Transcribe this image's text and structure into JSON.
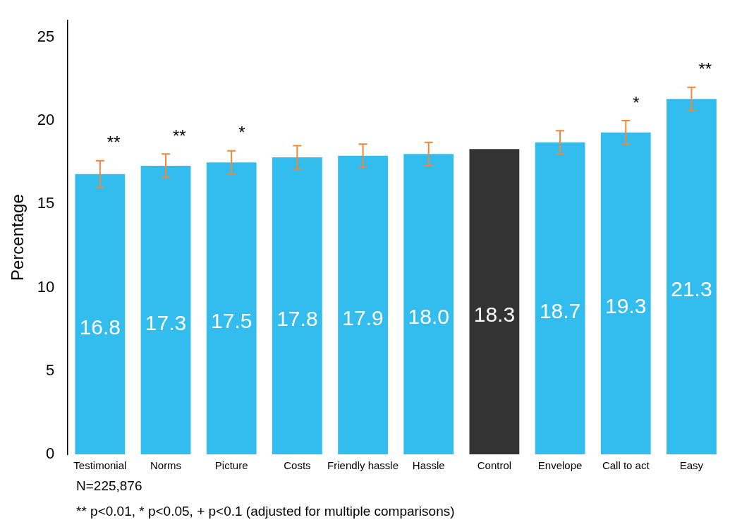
{
  "chart_data": {
    "type": "bar",
    "ylabel": "Percentage",
    "categories": [
      "Testimonial",
      "Norms",
      "Picture",
      "Costs",
      "Friendly hassle",
      "Hassle",
      "Control",
      "Envelope",
      "Call to act",
      "Easy"
    ],
    "values": [
      16.8,
      17.3,
      17.5,
      17.8,
      17.9,
      18.0,
      18.3,
      18.7,
      19.3,
      21.3
    ],
    "colors": [
      "#33bdef",
      "#33bdef",
      "#33bdef",
      "#33bdef",
      "#33bdef",
      "#33bdef",
      "#333333",
      "#33bdef",
      "#33bdef",
      "#33bdef"
    ],
    "errors": [
      0.8,
      0.7,
      0.7,
      0.7,
      0.7,
      0.7,
      null,
      0.7,
      0.7,
      0.7
    ],
    "value_labels": [
      "16.8",
      "17.3",
      "17.5",
      "17.8",
      "17.9",
      "18.0",
      "18.3",
      "18.7",
      "19.3",
      "21.3"
    ],
    "ylim": [
      0,
      26
    ],
    "yticks": [
      0,
      5,
      10,
      15,
      20,
      25
    ],
    "grid": false,
    "legend": false,
    "annotations": [
      "**",
      "**",
      "*",
      "*",
      "**",
      "N=225,876",
      "** p<0.01, * p<0.05, + p<0.1 (adjusted for multiple comparisons)"
    ]
  }
}
